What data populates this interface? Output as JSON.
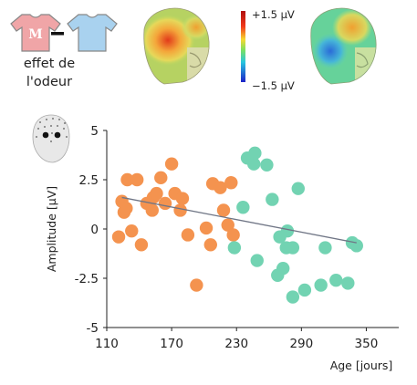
{
  "header": {
    "shirt_letter": "M",
    "caption_line1": "effet de",
    "caption_line2": "l'odeur",
    "colorbar_max": "+1.5 µV",
    "colorbar_min": "−1.5 µV"
  },
  "colors": {
    "group_young": "#f4934f",
    "group_old": "#72d3b2",
    "fit_line": "#6f7585",
    "shirt_red": "#f0a5a7",
    "shirt_blue": "#a9d2ef"
  },
  "chart_data": {
    "type": "scatter",
    "xlabel": "Age [jours]",
    "ylabel": "Amplitude [µV]",
    "xlim": [
      110,
      380
    ],
    "ylim": [
      -5,
      5
    ],
    "x_ticks": [
      "110",
      "170",
      "230",
      "290",
      "350"
    ],
    "y_ticks": [
      "5",
      "2.5",
      "0",
      "-2.5",
      "-5"
    ],
    "grid": false,
    "series": [
      {
        "color": "#f4934f",
        "points": [
          [
            121,
            -0.4
          ],
          [
            124,
            1.4
          ],
          [
            126,
            0.85
          ],
          [
            128,
            1.05
          ],
          [
            129,
            2.5
          ],
          [
            133,
            -0.1
          ],
          [
            138,
            2.5
          ],
          [
            142,
            -0.8
          ],
          [
            147,
            1.3
          ],
          [
            152,
            0.95
          ],
          [
            153,
            1.6
          ],
          [
            156,
            1.8
          ],
          [
            160,
            2.6
          ],
          [
            164,
            1.3
          ],
          [
            170,
            3.3
          ],
          [
            173,
            1.8
          ],
          [
            178,
            0.95
          ],
          [
            180,
            1.55
          ],
          [
            185,
            -0.3
          ],
          [
            193,
            -2.85
          ],
          [
            202,
            0.05
          ],
          [
            206,
            -0.8
          ],
          [
            208,
            2.3
          ],
          [
            215,
            2.1
          ],
          [
            218,
            0.95
          ],
          [
            222,
            0.2
          ],
          [
            225,
            2.35
          ],
          [
            227,
            -0.3
          ]
        ]
      },
      {
        "color": "#72d3b2",
        "points": [
          [
            228,
            -0.95
          ],
          [
            236,
            1.1
          ],
          [
            240,
            3.6
          ],
          [
            246,
            3.3
          ],
          [
            247,
            3.85
          ],
          [
            249,
            -1.6
          ],
          [
            258,
            3.25
          ],
          [
            263,
            1.5
          ],
          [
            268,
            -2.35
          ],
          [
            270,
            -0.4
          ],
          [
            273,
            -2.0
          ],
          [
            276,
            -0.95
          ],
          [
            277,
            -0.1
          ],
          [
            282,
            -0.95
          ],
          [
            282,
            -3.45
          ],
          [
            287,
            2.05
          ],
          [
            293,
            -3.1
          ],
          [
            308,
            -2.85
          ],
          [
            312,
            -0.95
          ],
          [
            322,
            -2.6
          ],
          [
            333,
            -2.75
          ],
          [
            337,
            -0.7
          ],
          [
            341,
            -0.85
          ]
        ]
      }
    ],
    "trend_line": {
      "x": [
        124,
        341
      ],
      "y": [
        1.6,
        -0.7
      ]
    }
  }
}
